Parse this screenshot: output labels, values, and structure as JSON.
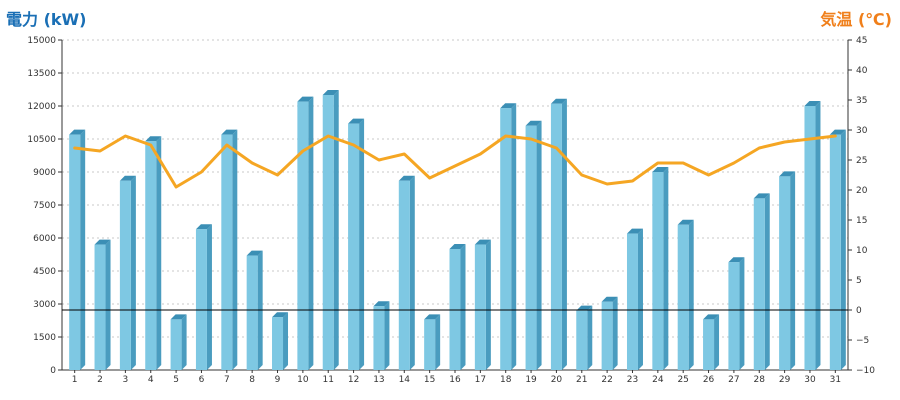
{
  "chart_data": {
    "type": "bar",
    "left_axis_title": "電力 (kW)",
    "right_axis_title": "気温 (℃)",
    "categories": [
      "1",
      "2",
      "3",
      "4",
      "5",
      "6",
      "7",
      "8",
      "9",
      "10",
      "11",
      "12",
      "13",
      "14",
      "15",
      "16",
      "17",
      "18",
      "19",
      "20",
      "21",
      "22",
      "23",
      "24",
      "25",
      "26",
      "27",
      "28",
      "29",
      "30",
      "31"
    ],
    "left_axis": {
      "ylim": [
        0,
        15000
      ],
      "ticks": [
        0,
        1500,
        3000,
        4500,
        6000,
        7500,
        9000,
        10500,
        12000,
        13500,
        15000
      ]
    },
    "right_axis": {
      "ylim": [
        -10,
        45
      ],
      "ticks": [
        -10,
        -5,
        0,
        5,
        10,
        15,
        20,
        25,
        30,
        35,
        40,
        45
      ]
    },
    "series": [
      {
        "kind": "bar",
        "axis": "left",
        "color": "#7ec8e3",
        "values": [
          10700,
          5700,
          8600,
          10400,
          2300,
          6400,
          10700,
          5200,
          2400,
          12200,
          12500,
          11200,
          2900,
          8600,
          2300,
          5500,
          5700,
          11900,
          11100,
          12100,
          2700,
          3100,
          6200,
          9000,
          6600,
          2300,
          4900,
          7800,
          8800,
          12000,
          10700
        ]
      },
      {
        "kind": "line",
        "axis": "right",
        "color": "#f5a623",
        "values": [
          27,
          26.5,
          29,
          27.5,
          20.5,
          23,
          27.5,
          24.5,
          22.5,
          26.5,
          29,
          27.5,
          25,
          26,
          22,
          24,
          26,
          29,
          28.5,
          27,
          22.5,
          21,
          21.5,
          24.5,
          24.5,
          22.5,
          24.5,
          27,
          28,
          28.5,
          29
        ]
      }
    ],
    "reference_line": {
      "axis": "right",
      "value": 0,
      "color": "#000000"
    },
    "grid": true
  }
}
